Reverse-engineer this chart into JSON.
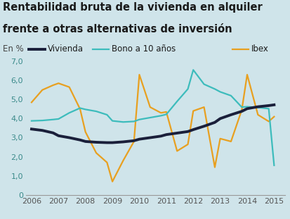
{
  "title_line1": "Rentabilidad bruta de la vivienda en alquiler",
  "title_line2": "frente a otras alternativas de inversión",
  "ylabel": "En %",
  "background_color": "#cfe4ea",
  "ylim": [
    0,
    7.0
  ],
  "yticks": [
    0,
    1.0,
    2.0,
    3.0,
    4.0,
    5.0,
    6.0,
    7.0
  ],
  "years": [
    2006,
    2006.4,
    2006.8,
    2007,
    2007.4,
    2007.8,
    2008,
    2008.4,
    2008.8,
    2009,
    2009.4,
    2009.8,
    2010,
    2010.4,
    2010.8,
    2011,
    2011.4,
    2011.8,
    2012,
    2012.4,
    2012.8,
    2013,
    2013.4,
    2013.8,
    2014,
    2014.4,
    2014.8,
    2015
  ],
  "vivienda": [
    3.45,
    3.38,
    3.25,
    3.1,
    3.0,
    2.88,
    2.8,
    2.76,
    2.74,
    2.74,
    2.78,
    2.84,
    2.92,
    3.0,
    3.08,
    3.16,
    3.24,
    3.32,
    3.42,
    3.6,
    3.8,
    4.0,
    4.2,
    4.38,
    4.52,
    4.62,
    4.68,
    4.72
  ],
  "bono": [
    3.88,
    3.9,
    3.95,
    3.98,
    4.3,
    4.55,
    4.48,
    4.38,
    4.2,
    3.88,
    3.82,
    3.85,
    3.95,
    4.05,
    4.15,
    4.22,
    4.9,
    5.55,
    6.55,
    5.8,
    5.55,
    5.4,
    5.2,
    4.6,
    4.62,
    4.58,
    4.52,
    1.55
  ],
  "ibex": [
    4.85,
    5.5,
    5.75,
    5.85,
    5.65,
    4.5,
    3.3,
    2.2,
    1.7,
    0.7,
    1.8,
    2.8,
    6.3,
    4.6,
    4.3,
    4.35,
    2.3,
    2.65,
    4.4,
    4.6,
    1.45,
    2.95,
    2.8,
    4.45,
    6.3,
    4.2,
    3.85,
    4.1
  ],
  "vivienda_color": "#1a1f3a",
  "bono_color": "#3dbcbc",
  "ibex_color": "#e8a020",
  "legend_labels": [
    "Vivienda",
    "Bono a 10 años",
    "Ibex"
  ],
  "title_fontsize": 10.5,
  "label_fontsize": 8.5,
  "tick_fontsize": 8
}
